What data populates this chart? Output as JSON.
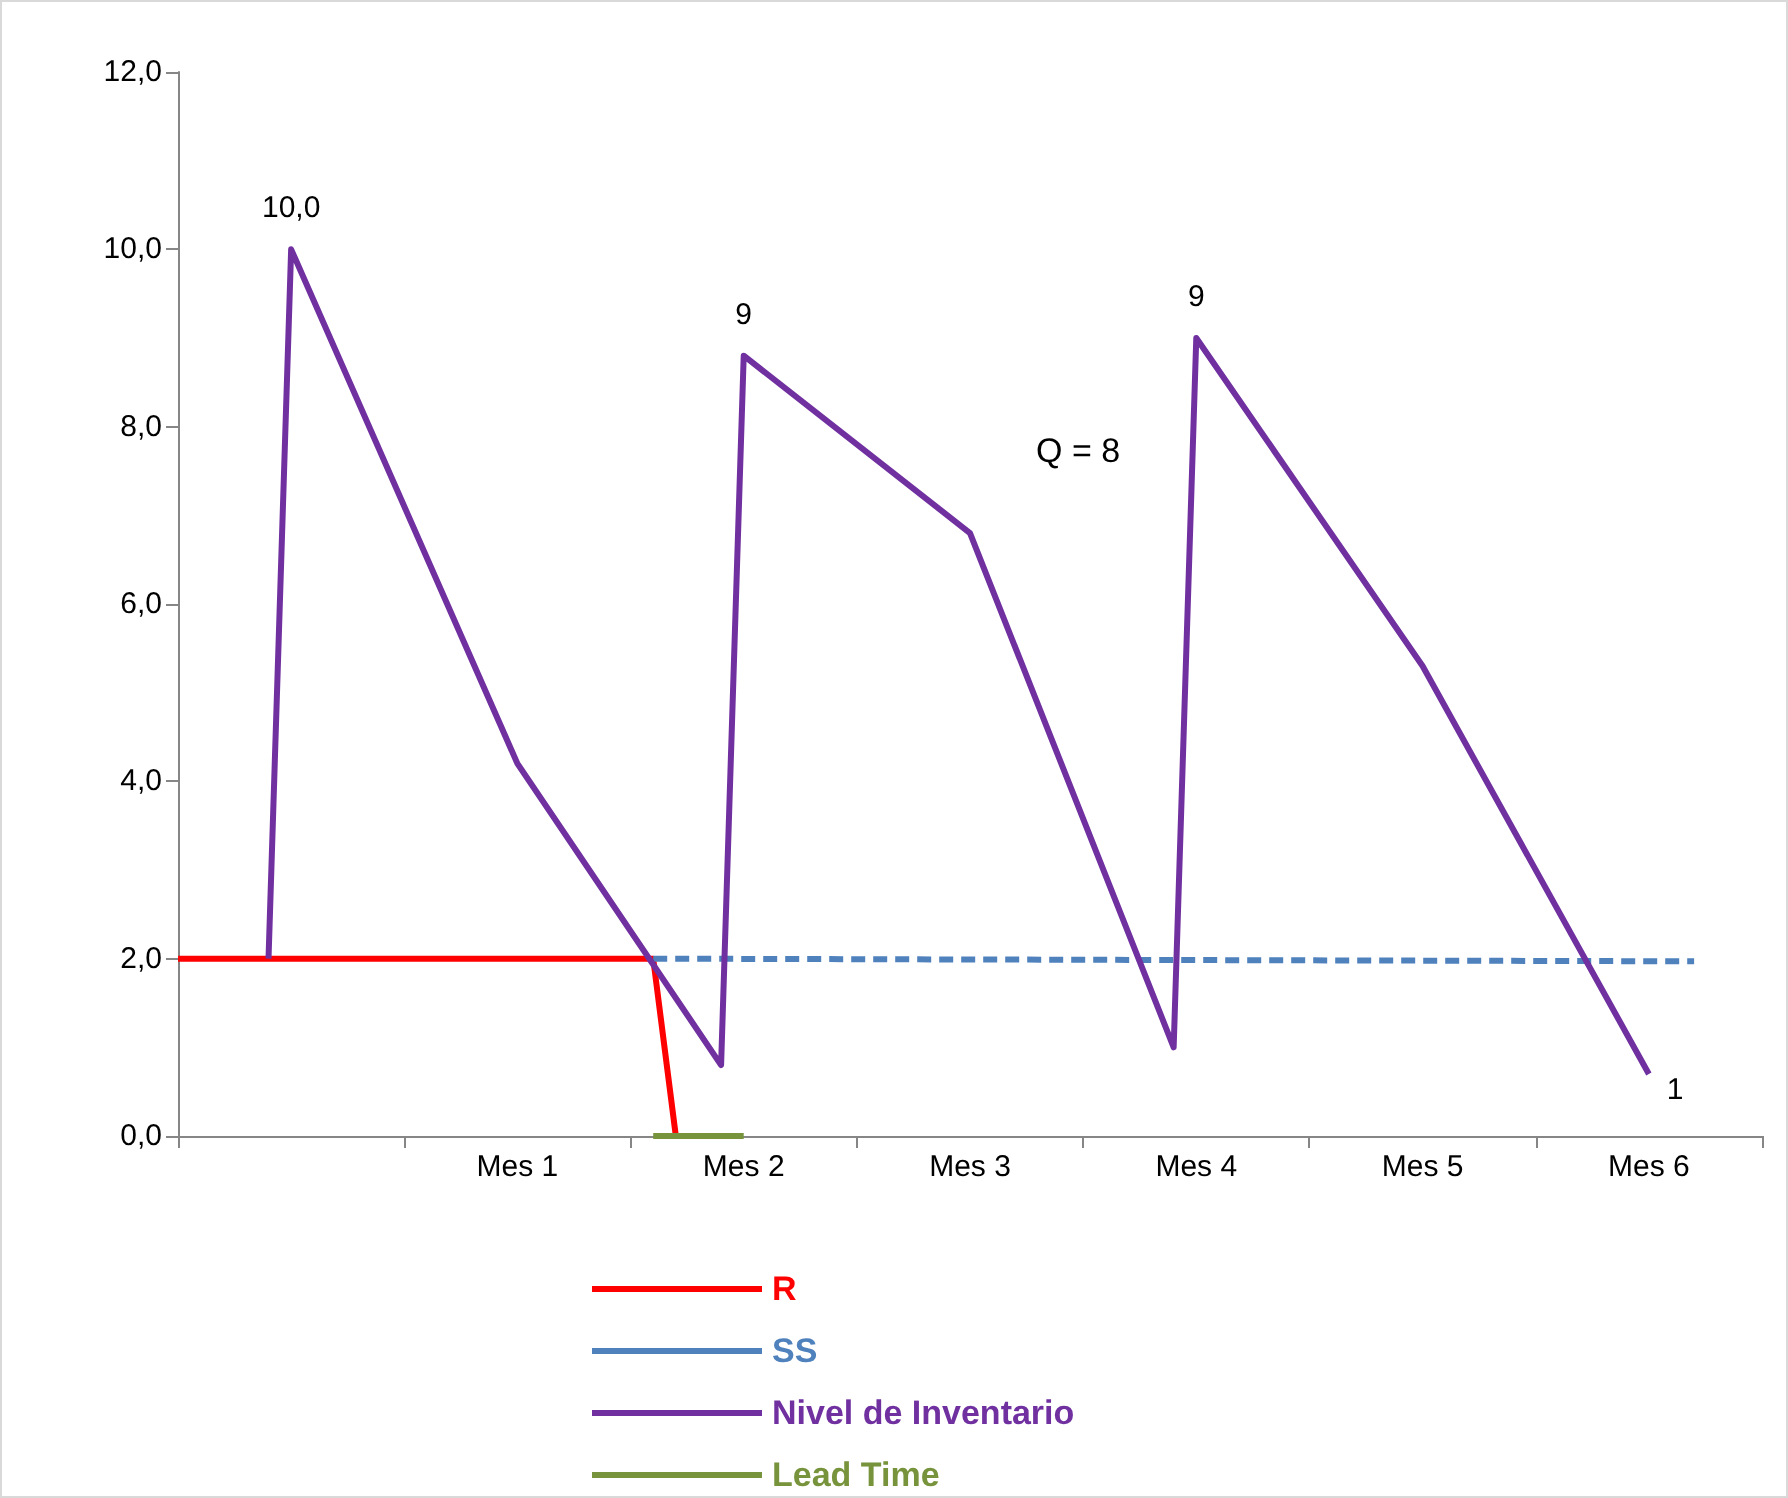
{
  "chart_data": {
    "type": "line",
    "annotations": [
      "Q = 8"
    ],
    "categories": [
      null,
      null,
      null,
      null,
      null,
      null,
      null,
      null,
      null,
      null,
      null,
      null,
      null,
      null,
      null,
      "Mes 1",
      null,
      null,
      null,
      null,
      null,
      null,
      null,
      null,
      null,
      "Mes 2",
      null,
      null,
      null,
      null,
      null,
      null,
      null,
      null,
      null,
      "Mes 3",
      null,
      null,
      null,
      null,
      null,
      null,
      null,
      null,
      null,
      "Mes 4",
      null,
      null,
      null,
      null,
      null,
      null,
      null,
      null,
      null,
      "Mes 5",
      null,
      null,
      null,
      null,
      null,
      null,
      null,
      null,
      null,
      "Mes 6",
      null,
      null,
      null,
      null,
      null
    ],
    "ylim": [
      0,
      12
    ],
    "yticks": [
      {
        "value": 0,
        "label": "0,0"
      },
      {
        "value": 2,
        "label": "2,0"
      },
      {
        "value": 4,
        "label": "4,0"
      },
      {
        "value": 6,
        "label": "6,0"
      },
      {
        "value": 8,
        "label": "8,0"
      },
      {
        "value": 10,
        "label": "10,0"
      },
      {
        "value": 12,
        "label": "12,0"
      }
    ],
    "grid": false,
    "legend": "bottom",
    "marker": "none",
    "series": [
      {
        "name": "R",
        "color": "#ff0000",
        "line_style": "solid",
        "values": [
          2.0,
          null,
          null,
          null,
          null,
          null,
          null,
          null,
          null,
          null,
          null,
          null,
          null,
          null,
          null,
          null,
          null,
          null,
          null,
          null,
          null,
          2.0,
          0,
          null,
          null,
          null,
          null,
          null,
          null,
          null,
          null,
          null,
          null,
          null,
          null,
          null,
          null,
          null,
          null,
          null,
          null,
          null,
          null,
          null,
          null,
          null,
          null,
          null,
          null,
          null,
          null,
          null,
          null,
          null,
          null,
          null,
          null,
          null,
          null,
          null,
          null,
          null,
          null,
          null,
          null,
          null,
          null,
          null,
          null,
          null,
          null
        ]
      },
      {
        "name": "SS",
        "color": "#4f81bd",
        "line_style": "dashed",
        "values": [
          null,
          null,
          null,
          null,
          null,
          null,
          null,
          null,
          null,
          null,
          null,
          null,
          null,
          null,
          null,
          null,
          null,
          null,
          null,
          null,
          null,
          2.0,
          null,
          null,
          null,
          null,
          null,
          null,
          null,
          null,
          null,
          null,
          null,
          null,
          null,
          null,
          null,
          null,
          null,
          null,
          null,
          null,
          null,
          null,
          null,
          null,
          null,
          null,
          null,
          null,
          null,
          null,
          null,
          null,
          null,
          null,
          null,
          null,
          null,
          null,
          null,
          null,
          null,
          null,
          null,
          null,
          null,
          1.97,
          null,
          null,
          null
        ]
      },
      {
        "name": "Nivel de Inventario",
        "color": "#7030a0",
        "line_style": "solid",
        "values": [
          null,
          null,
          null,
          null,
          2.0,
          10.0,
          null,
          null,
          null,
          null,
          null,
          null,
          null,
          null,
          null,
          4.2,
          null,
          null,
          null,
          null,
          null,
          null,
          null,
          null,
          0.8,
          8.8,
          null,
          null,
          null,
          null,
          null,
          null,
          null,
          null,
          null,
          6.8,
          null,
          null,
          null,
          null,
          null,
          null,
          null,
          null,
          1.0,
          9.0,
          null,
          null,
          null,
          null,
          null,
          null,
          null,
          null,
          null,
          5.3,
          null,
          null,
          null,
          null,
          null,
          null,
          null,
          null,
          null,
          0.7,
          null,
          null,
          null,
          null,
          null
        ],
        "value_labels": [
          null,
          null,
          null,
          null,
          null,
          "10,0",
          null,
          null,
          null,
          null,
          null,
          null,
          null,
          null,
          null,
          null,
          null,
          null,
          null,
          null,
          null,
          null,
          null,
          null,
          null,
          "9",
          null,
          null,
          null,
          null,
          null,
          null,
          null,
          null,
          null,
          null,
          null,
          null,
          null,
          null,
          null,
          null,
          null,
          null,
          null,
          "9",
          null,
          null,
          null,
          null,
          null,
          null,
          null,
          null,
          null,
          null,
          null,
          null,
          null,
          null,
          null,
          null,
          null,
          null,
          null,
          "1",
          null,
          null,
          null,
          null,
          null
        ]
      },
      {
        "name": "Lead Time",
        "color": "#77933c",
        "line_style": "solid",
        "values": [
          null,
          null,
          null,
          null,
          null,
          null,
          null,
          null,
          null,
          null,
          null,
          null,
          null,
          null,
          null,
          null,
          null,
          null,
          null,
          null,
          null,
          0,
          null,
          null,
          null,
          0,
          null,
          null,
          null,
          null,
          null,
          null,
          null,
          null,
          null,
          null,
          null,
          null,
          null,
          null,
          null,
          null,
          null,
          null,
          null,
          null,
          null,
          null,
          null,
          null,
          null,
          null,
          null,
          null,
          null,
          null,
          null,
          null,
          null,
          null,
          null,
          null,
          null,
          null,
          null,
          null,
          null,
          null,
          null,
          null,
          null
        ]
      }
    ]
  }
}
